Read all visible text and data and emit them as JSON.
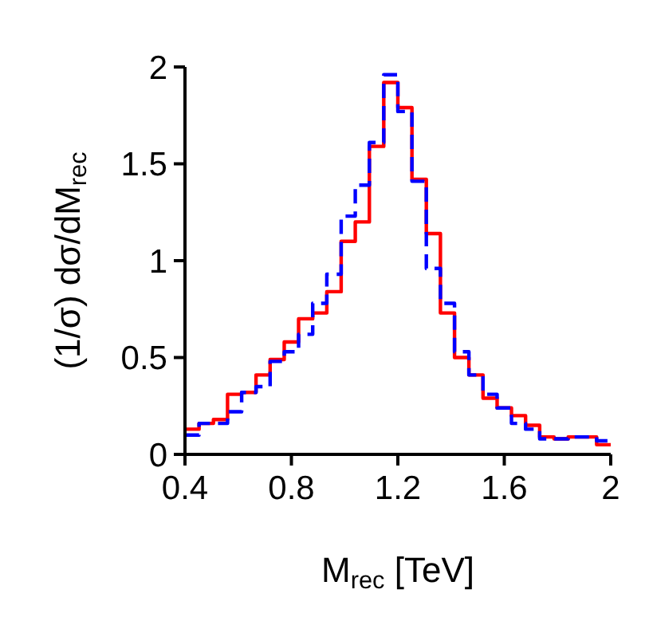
{
  "chart_data": {
    "type": "histogram",
    "xlabel": "M$_{rec}$ [TeV]",
    "ylabel": "(1/σ) dσ/dM$_{rec}$",
    "bins": [
      0.4,
      0.453,
      0.507,
      0.56,
      0.613,
      0.667,
      0.72,
      0.773,
      0.827,
      0.88,
      0.933,
      0.987,
      1.04,
      1.093,
      1.147,
      1.2,
      1.253,
      1.307,
      1.36,
      1.413,
      1.467,
      1.52,
      1.573,
      1.627,
      1.68,
      1.733,
      1.787,
      1.84,
      1.893,
      1.947,
      2.0
    ],
    "series": [
      {
        "color": "#ff0000",
        "line_style": "solid",
        "values": [
          0.13,
          0.16,
          0.18,
          0.31,
          0.32,
          0.41,
          0.49,
          0.58,
          0.7,
          0.73,
          0.84,
          1.1,
          1.2,
          1.59,
          1.92,
          1.79,
          1.42,
          1.14,
          0.73,
          0.5,
          0.41,
          0.29,
          0.24,
          0.2,
          0.15,
          0.09,
          0.08,
          0.09,
          0.09,
          0.05
        ]
      },
      {
        "color": "#0000ff",
        "line_style": "dashed",
        "values": [
          0.1,
          0.16,
          0.16,
          0.22,
          0.32,
          0.35,
          0.48,
          0.53,
          0.62,
          0.78,
          0.93,
          1.23,
          1.39,
          1.61,
          1.96,
          1.77,
          1.41,
          0.96,
          0.78,
          0.53,
          0.41,
          0.31,
          0.24,
          0.16,
          0.13,
          0.08,
          0.08,
          0.09,
          0.09,
          0.07
        ]
      }
    ],
    "xlim": [
      0.4,
      2
    ],
    "ylim": [
      0,
      2
    ],
    "xticks": [
      0.4,
      0.8,
      1.2,
      1.6,
      2
    ],
    "yticks": [
      0,
      0.5,
      1,
      1.5,
      2
    ],
    "grid": false,
    "legend": false
  }
}
